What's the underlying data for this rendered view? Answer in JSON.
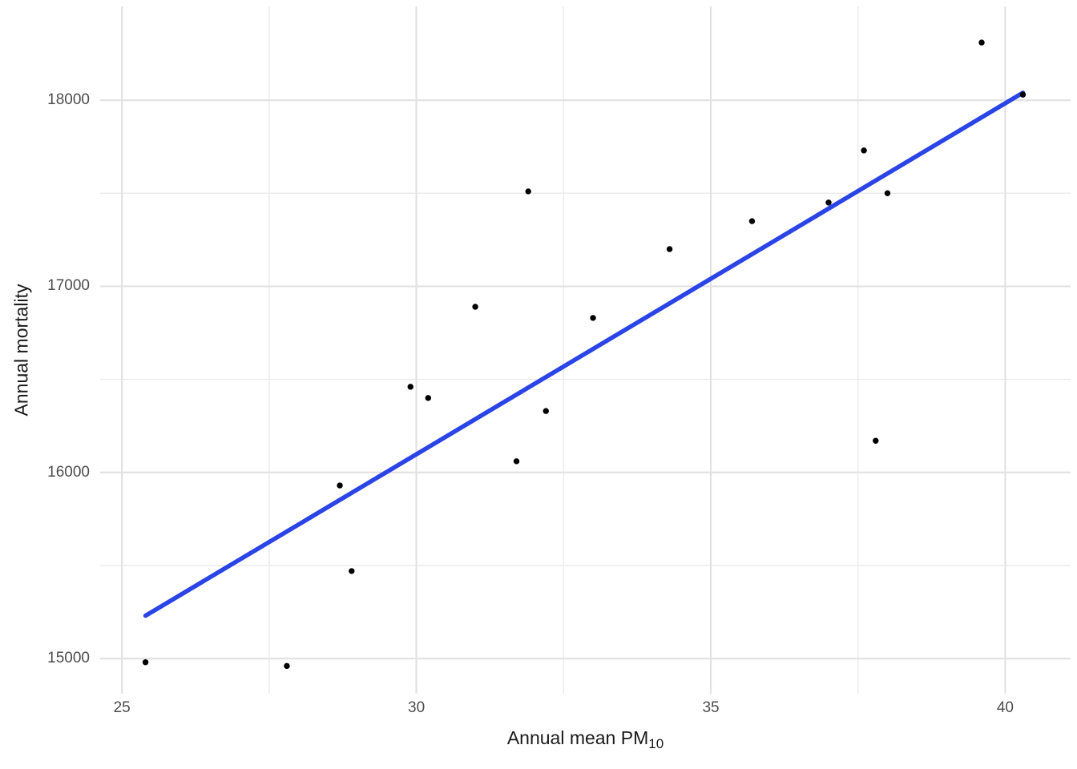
{
  "chart_data": {
    "type": "scatter",
    "title": "",
    "xlabel_main": "Annual mean PM",
    "xlabel_sub": "10",
    "ylabel": "Annual mortality",
    "x_ticks": [
      25,
      30,
      35,
      40
    ],
    "x_tick_labels": [
      "25",
      "30",
      "35",
      "40"
    ],
    "x_minor_ticks": [
      27.5,
      32.5,
      37.5
    ],
    "y_ticks": [
      15000,
      16000,
      17000,
      18000
    ],
    "y_tick_labels": [
      "15000",
      "16000",
      "17000",
      "18000"
    ],
    "y_minor_ticks": [
      15500,
      16500,
      17500
    ],
    "xlim": [
      24.63,
      41.11
    ],
    "ylim": [
      14811,
      18504
    ],
    "grid": "on",
    "legend": "none",
    "points": [
      [
        25.4,
        14980
      ],
      [
        27.8,
        14960
      ],
      [
        28.7,
        15930
      ],
      [
        28.9,
        15470
      ],
      [
        29.9,
        16460
      ],
      [
        30.2,
        16400
      ],
      [
        31.0,
        16890
      ],
      [
        31.7,
        16060
      ],
      [
        31.9,
        17510
      ],
      [
        32.2,
        16330
      ],
      [
        33.0,
        16830
      ],
      [
        34.3,
        17200
      ],
      [
        35.7,
        17350
      ],
      [
        37.0,
        17450
      ],
      [
        37.6,
        17730
      ],
      [
        37.8,
        16170
      ],
      [
        38.0,
        17500
      ],
      [
        39.6,
        18310
      ],
      [
        40.3,
        18030
      ]
    ],
    "trend_line": {
      "x1": 25.4,
      "y1": 15230,
      "x2": 40.3,
      "y2": 18040
    },
    "colors": {
      "point": "#000000",
      "trend": "#2b44e6",
      "grid_major": "#e2e2e2",
      "grid_minor": "#ebebeb",
      "tick_label": "#4d4d4d",
      "axis_title": "#1a1a1a",
      "background": "#ffffff"
    }
  }
}
